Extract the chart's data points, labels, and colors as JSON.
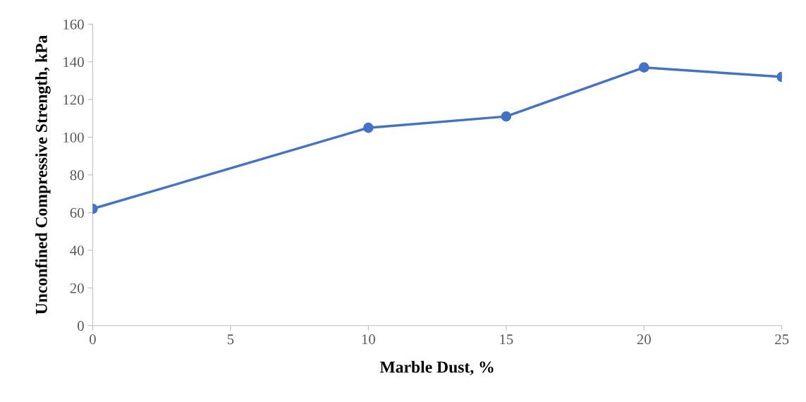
{
  "chart_data": {
    "type": "line",
    "xlabel": "Marble Dust, %",
    "ylabel": "Unconfined Compressive Strength, kPa",
    "x": [
      0,
      10,
      15,
      20,
      25
    ],
    "series": [
      {
        "color": "#4472c4",
        "values": [
          62,
          105,
          111,
          137,
          132
        ]
      }
    ],
    "xlim": [
      0,
      25
    ],
    "xticks": [
      0,
      5,
      10,
      15,
      20,
      25
    ],
    "ylim": [
      0,
      160
    ],
    "yticks": [
      0,
      20,
      40,
      60,
      80,
      100,
      120,
      140,
      160
    ],
    "grid": false,
    "marker": "circle",
    "line_style": "solid"
  }
}
